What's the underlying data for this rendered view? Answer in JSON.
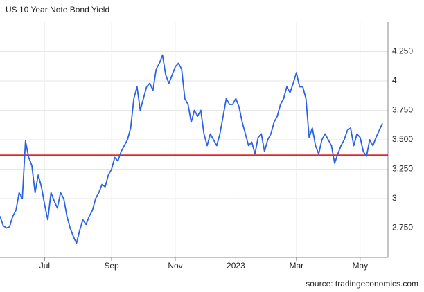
{
  "chart_data": {
    "type": "line",
    "title": "US 10 Year Note Bond Yield",
    "source": "source: tradingeconomics.com",
    "categories": [
      null,
      null,
      null,
      null,
      null,
      null,
      null,
      null,
      null,
      null,
      null,
      null,
      null,
      null,
      "Jul",
      null,
      null,
      null,
      null,
      null,
      null,
      null,
      null,
      null,
      null,
      null,
      null,
      null,
      null,
      null,
      null,
      null,
      null,
      null,
      null,
      "Sep",
      null,
      null,
      null,
      null,
      null,
      null,
      null,
      null,
      null,
      null,
      null,
      null,
      null,
      null,
      null,
      null,
      null,
      null,
      null,
      "Nov",
      null,
      null,
      null,
      null,
      null,
      null,
      null,
      null,
      null,
      null,
      null,
      null,
      null,
      null,
      null,
      null,
      null,
      null,
      "2023",
      null,
      null,
      null,
      null,
      null,
      null,
      null,
      null,
      null,
      null,
      null,
      null,
      null,
      null,
      null,
      null,
      null,
      null,
      "Mar",
      null,
      null,
      null,
      null,
      null,
      null,
      null,
      null,
      null,
      null,
      null,
      null,
      null,
      null,
      null,
      null,
      null,
      null,
      null,
      "May",
      null,
      null,
      null,
      null,
      null,
      null,
      null
    ],
    "values": [
      2.85,
      2.77,
      2.75,
      2.76,
      2.85,
      2.9,
      3.05,
      3.0,
      3.49,
      3.35,
      3.28,
      3.05,
      3.2,
      3.1,
      2.95,
      2.82,
      3.05,
      2.98,
      2.92,
      3.05,
      3.0,
      2.85,
      2.75,
      2.68,
      2.62,
      2.73,
      2.82,
      2.78,
      2.85,
      2.9,
      3.0,
      3.05,
      3.12,
      3.1,
      3.2,
      3.25,
      3.35,
      3.32,
      3.4,
      3.45,
      3.5,
      3.6,
      3.85,
      3.95,
      3.75,
      3.85,
      3.95,
      3.98,
      3.92,
      4.1,
      4.15,
      4.22,
      4.05,
      3.98,
      4.05,
      4.12,
      4.15,
      4.1,
      3.85,
      3.8,
      3.65,
      3.75,
      3.7,
      3.75,
      3.55,
      3.45,
      3.55,
      3.5,
      3.45,
      3.55,
      3.7,
      3.85,
      3.8,
      3.8,
      3.85,
      3.78,
      3.65,
      3.55,
      3.45,
      3.48,
      3.38,
      3.52,
      3.55,
      3.4,
      3.5,
      3.55,
      3.65,
      3.7,
      3.8,
      3.85,
      3.95,
      3.9,
      3.98,
      4.07,
      3.95,
      3.95,
      3.85,
      3.52,
      3.6,
      3.45,
      3.38,
      3.5,
      3.55,
      3.5,
      3.45,
      3.3,
      3.38,
      3.45,
      3.5,
      3.58,
      3.6,
      3.45,
      3.55,
      3.52,
      3.4,
      3.36,
      3.5,
      3.45,
      3.52,
      3.58,
      3.64
    ],
    "color": "#2b63e6",
    "reference_line": {
      "value": 3.37,
      "color": "#e8000b"
    },
    "ylim": [
      2.5,
      4.5
    ],
    "yticks": [
      {
        "value": 2.75,
        "label": "2.750"
      },
      3,
      {
        "value": 3.25,
        "label": "3.250"
      },
      {
        "value": 3.5,
        "label": "3.500"
      },
      {
        "value": 3.75,
        "label": "3.750"
      },
      4,
      {
        "value": 4.25,
        "label": "4.250"
      }
    ],
    "grid": true
  }
}
